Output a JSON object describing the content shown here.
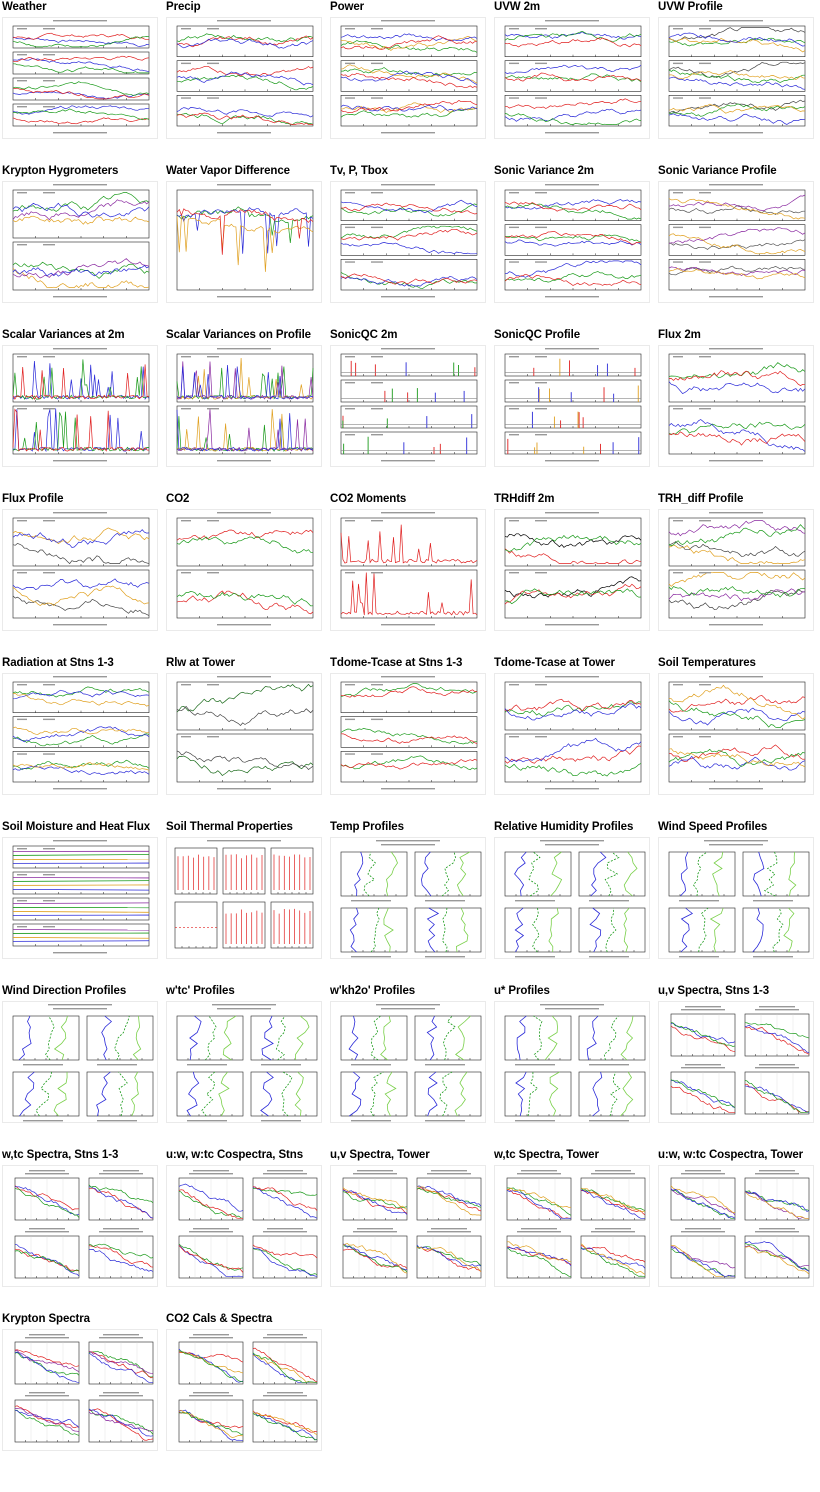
{
  "gallery": {
    "items": [
      {
        "title": "Weather",
        "style": "multi",
        "panels": 4,
        "colors": [
          "#2a2ad8",
          "#e02020",
          "#1a9a1a"
        ]
      },
      {
        "title": "Precip",
        "style": "multi",
        "panels": 3,
        "colors": [
          "#1a9a1a",
          "#e02020",
          "#2a2ad8"
        ]
      },
      {
        "title": "Power",
        "style": "multi",
        "panels": 3,
        "colors": [
          "#1a9a1a",
          "#e0a020",
          "#2a2ad8",
          "#e02020"
        ]
      },
      {
        "title": "UVW 2m",
        "style": "multi",
        "panels": 3,
        "colors": [
          "#2a2ad8",
          "#1a9a1a",
          "#e02020"
        ]
      },
      {
        "title": "UVW Profile",
        "style": "multi",
        "panels": 3,
        "colors": [
          "#444444",
          "#1a9a1a",
          "#e0a020",
          "#2a2ad8"
        ]
      },
      {
        "title": "Krypton Hygrometers",
        "style": "multi",
        "panels": 2,
        "colors": [
          "#1a9a1a",
          "#e0a020",
          "#8a2aa0",
          "#2a2ad8"
        ]
      },
      {
        "title": "Water Vapor Difference",
        "style": "single",
        "panels": 1,
        "colors": [
          "#1a9a1a",
          "#2a2ad8",
          "#e0a020",
          "#e02020"
        ]
      },
      {
        "title": "Tv, P, Tbox",
        "style": "multi",
        "panels": 3,
        "colors": [
          "#1a9a1a",
          "#2a2ad8",
          "#e02020"
        ]
      },
      {
        "title": "Sonic Variance 2m",
        "style": "multi",
        "panels": 3,
        "colors": [
          "#2a2ad8",
          "#1a9a1a",
          "#e02020"
        ]
      },
      {
        "title": "Sonic Variance Profile",
        "style": "multi",
        "panels": 3,
        "colors": [
          "#555555",
          "#8a2aa0",
          "#e0a020"
        ]
      },
      {
        "title": "Scalar Variances at 2m",
        "style": "spike",
        "panels": 2,
        "colors": [
          "#2a2ad8",
          "#1a9a1a",
          "#e02020"
        ]
      },
      {
        "title": "Scalar Variances on Profile",
        "style": "spike",
        "panels": 2,
        "colors": [
          "#1a9a1a",
          "#e0a020",
          "#8a2aa0",
          "#2a2ad8"
        ]
      },
      {
        "title": "SonicQC 2m",
        "style": "qc",
        "panels": 4,
        "colors": [
          "#e02020",
          "#1a9a1a",
          "#2a2ad8"
        ]
      },
      {
        "title": "SonicQC Profile",
        "style": "qc",
        "panels": 4,
        "colors": [
          "#e0a020",
          "#2a2ad8",
          "#e02020"
        ]
      },
      {
        "title": "Flux 2m",
        "style": "multi",
        "panels": 2,
        "colors": [
          "#1a9a1a",
          "#2a2ad8",
          "#e02020"
        ]
      },
      {
        "title": "Flux Profile",
        "style": "multi",
        "panels": 2,
        "colors": [
          "#444444",
          "#e0a020",
          "#2a2ad8"
        ]
      },
      {
        "title": "CO2",
        "style": "multi",
        "panels": 2,
        "colors": [
          "#e02020",
          "#1a9a1a"
        ]
      },
      {
        "title": "CO2 Moments",
        "style": "spike",
        "panels": 2,
        "colors": [
          "#e02020"
        ]
      },
      {
        "title": "TRHdiff 2m",
        "style": "multi",
        "panels": 2,
        "colors": [
          "#000000",
          "#e02020",
          "#1a9a1a"
        ]
      },
      {
        "title": "TRH_diff Profile",
        "style": "multi",
        "panels": 2,
        "colors": [
          "#444444",
          "#8a2aa0",
          "#e0a020",
          "#1a9a1a"
        ]
      },
      {
        "title": "Radiation at Stns 1-3",
        "style": "multi",
        "panels": 3,
        "colors": [
          "#1a9a1a",
          "#2a2ad8",
          "#e0a020"
        ]
      },
      {
        "title": "Rlw at Tower",
        "style": "multi",
        "panels": 2,
        "colors": [
          "#1a6a1a",
          "#444444"
        ]
      },
      {
        "title": "Tdome-Tcase at Stns 1-3",
        "style": "multi",
        "panels": 3,
        "colors": [
          "#1a9a1a",
          "#e02020"
        ]
      },
      {
        "title": "Tdome-Tcase at Tower",
        "style": "multi",
        "panels": 2,
        "colors": [
          "#1a9a1a",
          "#e02020",
          "#2a2ad8"
        ]
      },
      {
        "title": "Soil Temperatures",
        "style": "multi",
        "panels": 2,
        "colors": [
          "#e02020",
          "#2a2ad8",
          "#1a9a1a",
          "#e0a020"
        ]
      },
      {
        "title": "Soil Moisture and Heat Flux",
        "style": "flat",
        "panels": 4,
        "colors": [
          "#8a2aa0",
          "#1a9a1a",
          "#e0a020",
          "#2a2ad8"
        ]
      },
      {
        "title": "Soil Thermal Properties",
        "style": "thermal",
        "panels": 6,
        "colors": [
          "#e02020"
        ]
      },
      {
        "title": "Temp Profiles",
        "style": "profile",
        "panels": 4,
        "colors": [
          "#2a2ad8",
          "#1a9a1a",
          "#7ad04a"
        ]
      },
      {
        "title": "Relative Humidity Profiles",
        "style": "profile",
        "panels": 4,
        "colors": [
          "#2a2ad8",
          "#1a9a1a",
          "#7ad04a"
        ]
      },
      {
        "title": "Wind Speed Profiles",
        "style": "profile",
        "panels": 4,
        "colors": [
          "#2a2ad8",
          "#1a9a1a",
          "#7ad04a"
        ]
      },
      {
        "title": "Wind Direction Profiles",
        "style": "profile",
        "panels": 4,
        "colors": [
          "#2a2ad8",
          "#1a9a1a",
          "#7ad04a"
        ]
      },
      {
        "title": "w'tc' Profiles",
        "style": "profile",
        "panels": 4,
        "colors": [
          "#2a2ad8",
          "#1a9a1a",
          "#7ad04a"
        ]
      },
      {
        "title": "w'kh2o' Profiles",
        "style": "profile",
        "panels": 4,
        "colors": [
          "#2a2ad8",
          "#1a9a1a",
          "#7ad04a"
        ]
      },
      {
        "title": "u* Profiles",
        "style": "profile",
        "panels": 4,
        "colors": [
          "#2a2ad8",
          "#1a9a1a",
          "#7ad04a"
        ]
      },
      {
        "title": "u,v Spectra, Stns 1-3",
        "style": "spectra",
        "panels": 4,
        "colors": [
          "#e02020",
          "#2a2ad8",
          "#1a9a1a"
        ]
      },
      {
        "title": "w,tc Spectra, Stns 1-3",
        "style": "spectra",
        "panels": 4,
        "colors": [
          "#e02020",
          "#2a2ad8",
          "#1a9a1a"
        ]
      },
      {
        "title": "u:w, w:tc Cospectra, Stns",
        "style": "spectra",
        "panels": 4,
        "colors": [
          "#1a9a1a",
          "#2a2ad8",
          "#e02020"
        ]
      },
      {
        "title": "u,v Spectra, Tower",
        "style": "spectra",
        "panels": 4,
        "colors": [
          "#e02020",
          "#1a9a1a",
          "#2a2ad8",
          "#e0a020"
        ]
      },
      {
        "title": "w,tc Spectra, Tower",
        "style": "spectra",
        "panels": 4,
        "colors": [
          "#e02020",
          "#1a9a1a",
          "#2a2ad8",
          "#e0a020"
        ]
      },
      {
        "title": "u:w, w:tc Cospectra, Tower",
        "style": "spectra",
        "panels": 4,
        "colors": [
          "#1a9a1a",
          "#8a2aa0",
          "#e0a020",
          "#2a2ad8"
        ]
      },
      {
        "title": "Krypton Spectra",
        "style": "spectra",
        "panels": 4,
        "colors": [
          "#1a9a1a",
          "#e02020",
          "#2a2ad8",
          "#8a2aa0"
        ]
      },
      {
        "title": "CO2 Cals & Spectra",
        "style": "spectra",
        "panels": 4,
        "colors": [
          "#e02020",
          "#2a2ad8",
          "#e0a020",
          "#1a9a1a"
        ]
      }
    ]
  }
}
